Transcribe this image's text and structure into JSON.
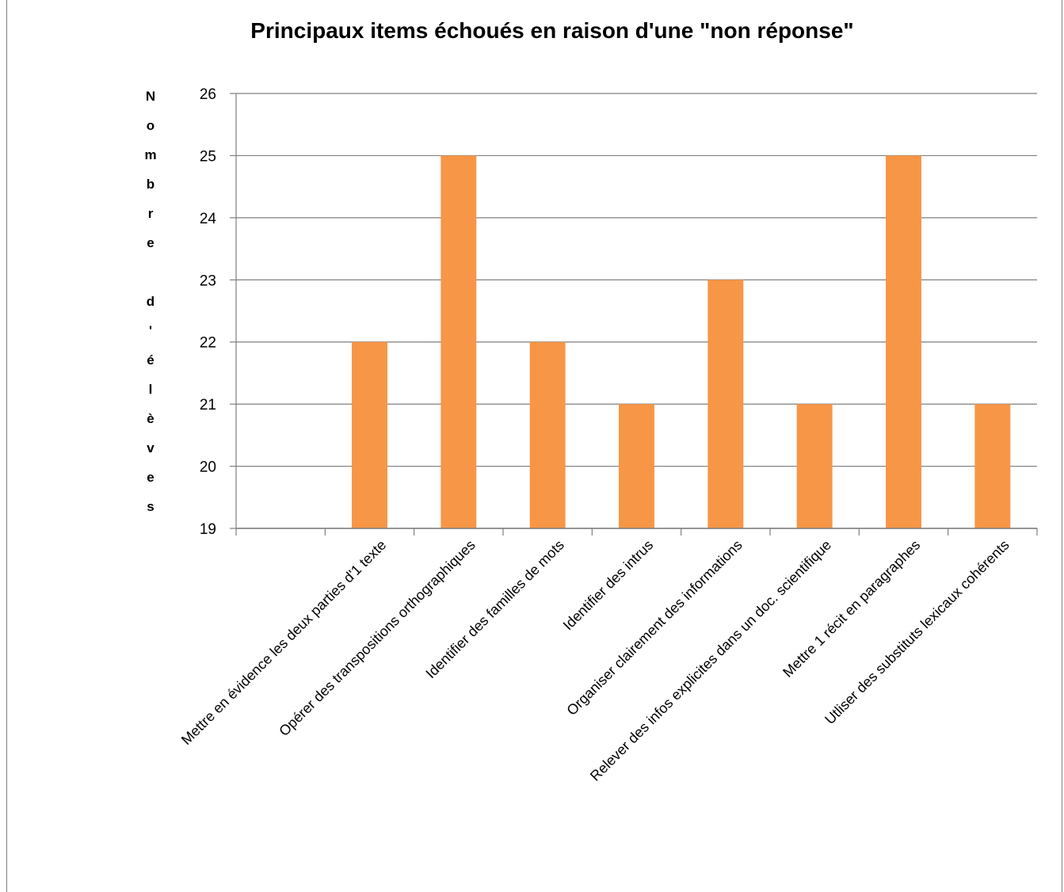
{
  "chart_data": {
    "type": "bar",
    "title": "Principaux items échoués en raison d'une \"non réponse\"",
    "xlabel": "",
    "ylabel": "Nombre d'élèves",
    "categories": [
      "",
      "Mettre en évidence les deux parties d'1 texte",
      "Opérer des transpositions orthographiques",
      "Identifier des familles de mots",
      "Identifier des intrus",
      "Organiser clairement des informations",
      "Relever des infos explicites dans un doc. scientifique",
      "Mettre 1 récit en paragraphes",
      "Utliser des substituts lexicaux cohérents"
    ],
    "values": [
      null,
      22,
      25,
      22,
      21,
      23,
      21,
      25,
      21
    ],
    "ylim": [
      19,
      26
    ],
    "yticks": [
      19,
      20,
      21,
      22,
      23,
      24,
      25,
      26
    ],
    "grid": true,
    "legend": "none",
    "bar_color": "#f79646",
    "grid_color": "#7f7f7f"
  }
}
